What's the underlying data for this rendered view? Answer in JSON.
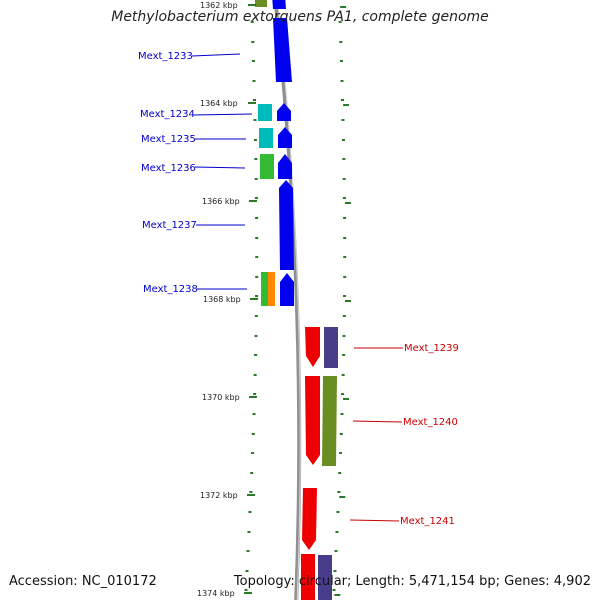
{
  "title": "Methylobacterium extorquens PA1, complete genome",
  "footer": {
    "accession": "Accession: NC_010172",
    "topology": "Topology: circular; Length: 5,471,154 bp; Genes: 4,902"
  },
  "colors": {
    "backbone": "#909090",
    "tick": "#2a7a2a",
    "forward_label": "#0000cc",
    "reverse_label": "#cc0000",
    "blue": "#0000ee",
    "red": "#ee0000",
    "cyan": "#00bbbb",
    "green": "#33bb33",
    "orange": "#ff8800",
    "olive": "#6b8e23",
    "slate": "#483d8b"
  },
  "scale_labels": [
    "1362 kbp",
    "1364 kbp",
    "1366 kbp",
    "1368 kbp",
    "1370 kbp",
    "1372 kbp",
    "1374 kbp"
  ],
  "genes": [
    {
      "label": "Mext_1233",
      "strand": "forward"
    },
    {
      "label": "Mext_1234",
      "strand": "forward"
    },
    {
      "label": "Mext_1235",
      "strand": "forward"
    },
    {
      "label": "Mext_1236",
      "strand": "forward"
    },
    {
      "label": "Mext_1237",
      "strand": "forward"
    },
    {
      "label": "Mext_1238",
      "strand": "forward"
    },
    {
      "label": "Mext_1239",
      "strand": "reverse"
    },
    {
      "label": "Mext_1240",
      "strand": "reverse"
    },
    {
      "label": "Mext_1241",
      "strand": "reverse"
    }
  ]
}
